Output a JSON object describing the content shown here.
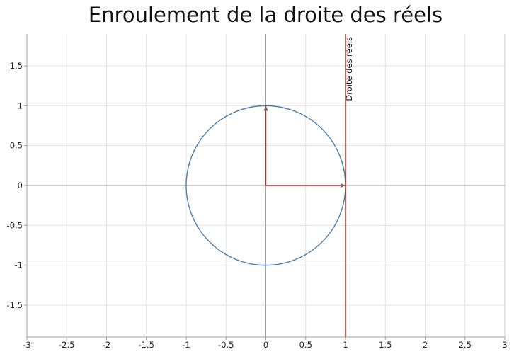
{
  "chart_data": {
    "type": "line",
    "title": "Enroulement de la droite des réels",
    "xlabel": "",
    "ylabel": "",
    "xlim": [
      -3,
      3
    ],
    "ylim": [
      -1.9,
      1.9
    ],
    "grid": true,
    "x_ticks": [
      -3,
      -2.5,
      -2,
      -1.5,
      -1,
      -0.5,
      0,
      0.5,
      1,
      1.5,
      2,
      2.5,
      3
    ],
    "y_ticks": [
      -1.5,
      -1,
      -0.5,
      0,
      0.5,
      1,
      1.5
    ],
    "series": [
      {
        "kind": "circle",
        "center": [
          0,
          0
        ],
        "radius": 1,
        "color": "#4a7fb0"
      },
      {
        "kind": "vline",
        "x": 1,
        "color": "#c62828"
      },
      {
        "kind": "arrow",
        "from": [
          0,
          0
        ],
        "to": [
          1,
          0
        ],
        "color": "#c62828"
      },
      {
        "kind": "arrow",
        "from": [
          0,
          0
        ],
        "to": [
          0,
          1
        ],
        "color": "#c62828"
      }
    ],
    "annotations": [
      {
        "text": "Droite des réels",
        "x": 1,
        "y": 1.9,
        "rotate": -90
      }
    ],
    "colors": {
      "grid": "#e3e3e3",
      "axis": "#a0a0a0",
      "frame": "#c8c8c8"
    }
  }
}
